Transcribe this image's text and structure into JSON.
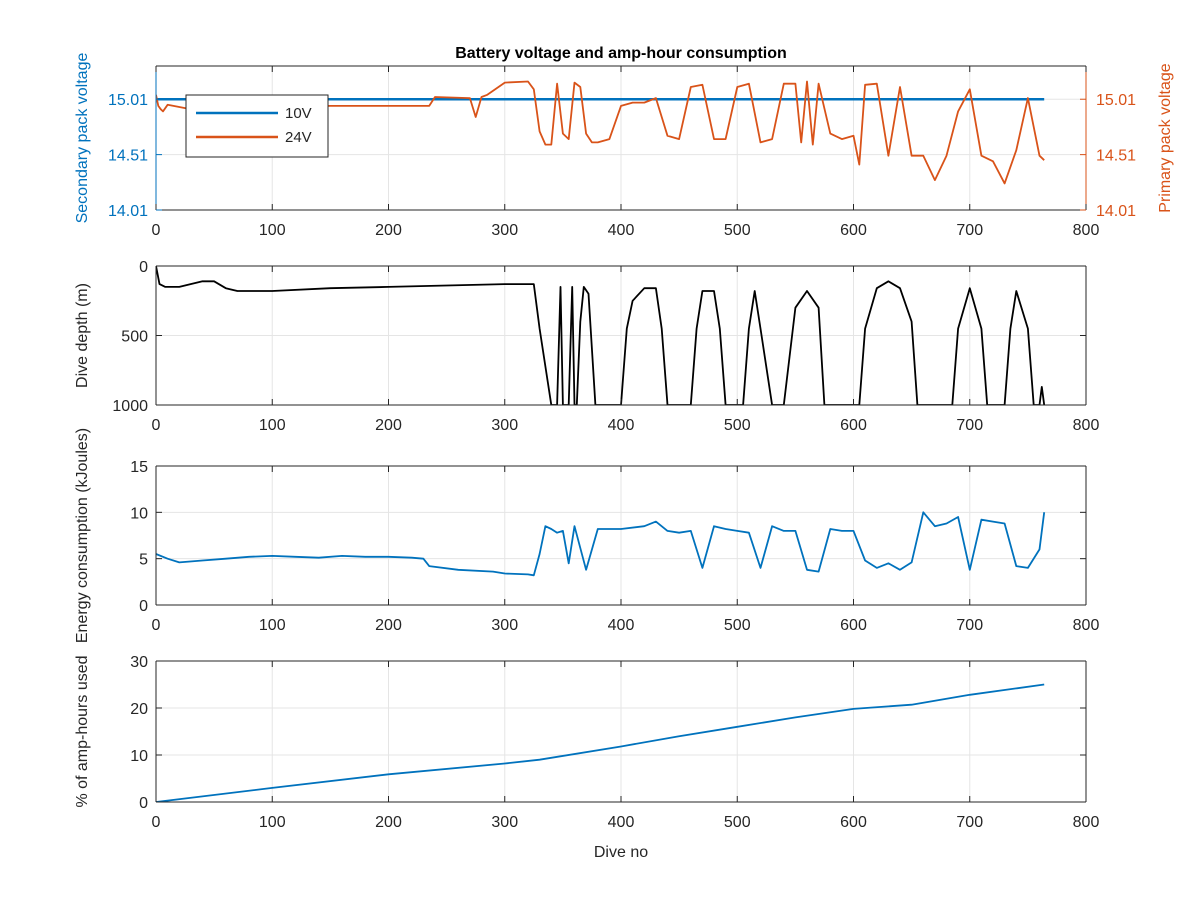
{
  "title": "Battery voltage and amp-hour consumption",
  "colors": {
    "blue": "#0072BD",
    "orange": "#D95319",
    "black": "#000000",
    "grid": "#e5e5e5",
    "axis": "#262626"
  },
  "chart_data": [
    {
      "type": "line",
      "title": "Battery voltage and amp-hour consumption",
      "xlabel": "",
      "ylabel": "Secondary pack voltage",
      "ylabel_right": "Primary pack voltage",
      "xlim": [
        0,
        800
      ],
      "ylim": [
        14.01,
        15.31
      ],
      "ylim_right": [
        14.01,
        15.31
      ],
      "xticks": [
        0,
        100,
        200,
        300,
        400,
        500,
        600,
        700,
        800
      ],
      "yticks": [
        14.01,
        14.51,
        15.01
      ],
      "ytick_labels": [
        "14.01",
        "14.51",
        "15.01"
      ],
      "yticks_right": [
        14.01,
        14.51,
        15.01
      ],
      "ytick_labels_right": [
        "14.01",
        "14.51",
        "15.01"
      ],
      "grid": true,
      "legend": "top-left",
      "series": [
        {
          "name": "10V",
          "axis": "left",
          "color": "#0072BD",
          "x": [
            0,
            764
          ],
          "y": [
            15.01,
            15.01
          ]
        },
        {
          "name": "24V",
          "axis": "right",
          "color": "#D95319",
          "x": [
            0,
            2,
            4,
            6,
            10,
            20,
            30,
            50,
            70,
            100,
            150,
            200,
            235,
            240,
            270,
            275,
            280,
            285,
            300,
            320,
            325,
            330,
            335,
            340,
            345,
            350,
            355,
            360,
            365,
            370,
            375,
            380,
            390,
            400,
            410,
            420,
            430,
            440,
            450,
            460,
            470,
            480,
            490,
            500,
            510,
            520,
            530,
            540,
            550,
            555,
            560,
            565,
            570,
            580,
            590,
            600,
            605,
            610,
            620,
            630,
            640,
            650,
            660,
            670,
            680,
            690,
            700,
            710,
            720,
            730,
            740,
            750,
            760,
            764
          ],
          "y": [
            15.05,
            14.95,
            14.92,
            14.9,
            14.96,
            14.94,
            14.92,
            14.97,
            14.95,
            14.94,
            14.95,
            14.95,
            14.95,
            15.03,
            15.02,
            14.85,
            15.03,
            15.05,
            15.16,
            15.17,
            15.1,
            14.72,
            14.6,
            14.6,
            15.15,
            14.7,
            14.65,
            15.16,
            15.12,
            14.7,
            14.62,
            14.62,
            14.65,
            14.95,
            14.98,
            14.98,
            15.02,
            14.68,
            14.65,
            15.12,
            15.14,
            14.65,
            14.65,
            15.12,
            15.15,
            14.62,
            14.65,
            15.15,
            15.15,
            14.62,
            15.17,
            14.6,
            15.15,
            14.7,
            14.65,
            14.68,
            14.42,
            15.14,
            15.15,
            14.5,
            15.12,
            14.5,
            14.5,
            14.28,
            14.5,
            14.9,
            15.1,
            14.5,
            14.45,
            14.25,
            14.55,
            15.02,
            14.5,
            14.46
          ]
        }
      ]
    },
    {
      "type": "line",
      "xlabel": "",
      "ylabel": "Dive depth (m)",
      "xlim": [
        0,
        800
      ],
      "ylim": [
        0,
        1000
      ],
      "y_reversed": true,
      "xticks": [
        0,
        100,
        200,
        300,
        400,
        500,
        600,
        700,
        800
      ],
      "yticks": [
        0,
        500,
        1000
      ],
      "ytick_labels": [
        "0",
        "500",
        "1000"
      ],
      "grid": true,
      "series": [
        {
          "name": "",
          "color": "#000000",
          "x": [
            0,
            3,
            8,
            20,
            40,
            50,
            60,
            70,
            80,
            100,
            150,
            200,
            250,
            300,
            325,
            330,
            340,
            345,
            348,
            350,
            352,
            355,
            358,
            360,
            362,
            365,
            368,
            372,
            378,
            390,
            400,
            405,
            410,
            420,
            430,
            435,
            440,
            450,
            460,
            465,
            470,
            480,
            485,
            490,
            500,
            505,
            510,
            515,
            520,
            530,
            535,
            540,
            550,
            560,
            570,
            575,
            580,
            590,
            600,
            605,
            610,
            620,
            630,
            640,
            650,
            655,
            660,
            670,
            680,
            685,
            690,
            700,
            710,
            715,
            720,
            730,
            735,
            740,
            750,
            755,
            760,
            762,
            764
          ],
          "y": [
            0,
            130,
            150,
            150,
            110,
            110,
            160,
            180,
            180,
            180,
            160,
            150,
            140,
            130,
            130,
            450,
            1000,
            1000,
            150,
            1000,
            1000,
            1000,
            150,
            1000,
            1000,
            400,
            150,
            200,
            1000,
            1000,
            1000,
            450,
            250,
            160,
            160,
            450,
            1000,
            1000,
            1000,
            450,
            180,
            180,
            450,
            1000,
            1000,
            1000,
            450,
            180,
            450,
            1000,
            1000,
            1000,
            300,
            180,
            300,
            1000,
            1000,
            1000,
            1000,
            1000,
            450,
            160,
            110,
            160,
            400,
            1000,
            1000,
            1000,
            1000,
            1000,
            450,
            160,
            450,
            1000,
            1000,
            1000,
            450,
            180,
            450,
            1000,
            1000,
            870,
            1000
          ]
        }
      ]
    },
    {
      "type": "line",
      "xlabel": "",
      "ylabel": "Energy consumption (kJoules)",
      "xlim": [
        0,
        800
      ],
      "ylim": [
        0,
        15
      ],
      "xticks": [
        0,
        100,
        200,
        300,
        400,
        500,
        600,
        700,
        800
      ],
      "yticks": [
        0,
        5,
        10,
        15
      ],
      "ytick_labels": [
        "0",
        "5",
        "10",
        "15"
      ],
      "grid": true,
      "series": [
        {
          "name": "",
          "color": "#0072BD",
          "x": [
            0,
            10,
            20,
            40,
            60,
            80,
            100,
            120,
            140,
            160,
            180,
            200,
            220,
            230,
            235,
            260,
            290,
            300,
            320,
            325,
            330,
            335,
            340,
            345,
            350,
            355,
            360,
            370,
            380,
            400,
            420,
            430,
            440,
            450,
            460,
            470,
            480,
            490,
            500,
            510,
            520,
            530,
            540,
            550,
            560,
            570,
            580,
            590,
            600,
            610,
            620,
            630,
            640,
            650,
            660,
            670,
            680,
            690,
            700,
            710,
            720,
            730,
            740,
            750,
            760,
            764
          ],
          "y": [
            5.5,
            5.0,
            4.6,
            4.8,
            5.0,
            5.2,
            5.3,
            5.2,
            5.1,
            5.3,
            5.2,
            5.2,
            5.1,
            5.0,
            4.2,
            3.8,
            3.6,
            3.4,
            3.3,
            3.2,
            5.5,
            8.5,
            8.2,
            7.8,
            8.0,
            4.5,
            8.5,
            3.8,
            8.2,
            8.2,
            8.5,
            9.0,
            8.0,
            7.8,
            8.0,
            4.0,
            8.5,
            8.2,
            8.0,
            7.8,
            4.0,
            8.5,
            8.0,
            8.0,
            3.8,
            3.6,
            8.2,
            8.0,
            8.0,
            4.8,
            4.0,
            4.5,
            3.8,
            4.6,
            10.0,
            8.5,
            8.8,
            9.5,
            3.8,
            9.2,
            9.0,
            8.8,
            4.2,
            4.0,
            6.0,
            10.0
          ]
        }
      ]
    },
    {
      "type": "line",
      "xlabel": "Dive no",
      "ylabel": "% of amp-hours used",
      "xlim": [
        0,
        800
      ],
      "ylim": [
        0,
        30
      ],
      "xticks": [
        0,
        100,
        200,
        300,
        400,
        500,
        600,
        700,
        800
      ],
      "yticks": [
        0,
        10,
        20,
        30
      ],
      "ytick_labels": [
        "0",
        "10",
        "20",
        "30"
      ],
      "grid": true,
      "series": [
        {
          "name": "",
          "color": "#0072BD",
          "x": [
            0,
            100,
            200,
            300,
            330,
            400,
            450,
            500,
            550,
            600,
            650,
            700,
            764
          ],
          "y": [
            0,
            3.0,
            5.9,
            8.2,
            9.0,
            11.8,
            14.0,
            16.0,
            18.0,
            19.8,
            20.7,
            22.8,
            25.0
          ]
        }
      ]
    }
  ]
}
